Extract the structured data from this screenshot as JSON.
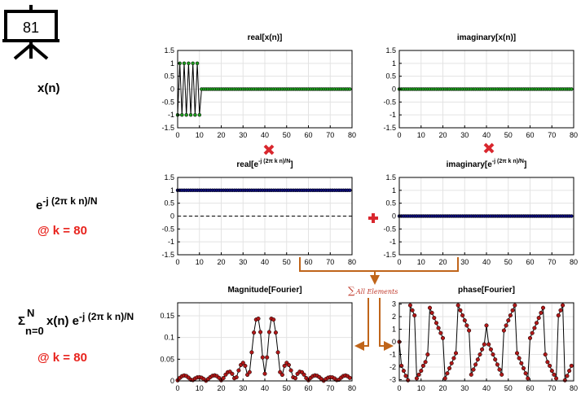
{
  "slide": {
    "number": "81"
  },
  "rows": {
    "row1": {
      "label": "x(n)"
    },
    "row2": {
      "label_base": "e",
      "label_exp": "-j (2π k n)/N",
      "k_text": "@ k = 80"
    },
    "row3": {
      "sigma": "Σ",
      "sigma_top": "N",
      "sigma_bottom": "n=0",
      "expr_mid": "x(n) e",
      "expr_exp": "-j (2π k n)/N",
      "k_text": "@ k = 80"
    }
  },
  "annotations": {
    "sum_label": "All Elements",
    "sum_symbol": "∑"
  },
  "colors": {
    "green": "#1c9a1c",
    "navy": "#0b0b7a",
    "maroon": "#b01818",
    "orange": "#c0651a",
    "red_mark": "#d9272e"
  },
  "chart_data": [
    {
      "id": "real_x",
      "type": "line",
      "title": "real[x(n)]",
      "xlim": [
        0,
        80
      ],
      "ylim": [
        -1.5,
        1.5
      ],
      "xticks": [
        0,
        10,
        20,
        30,
        40,
        50,
        60,
        70,
        80
      ],
      "yticks": [
        -1.5,
        -1,
        -0.5,
        0,
        0.5,
        1,
        1.5
      ],
      "series": [
        {
          "x_start": 0,
          "x_step": 1,
          "values": [
            -1,
            1,
            -1,
            1,
            -1,
            1,
            -1,
            1,
            -1,
            1,
            -1,
            0,
            0,
            0,
            0,
            0,
            0,
            0,
            0,
            0,
            0,
            0,
            0,
            0,
            0,
            0,
            0,
            0,
            0,
            0,
            0,
            0,
            0,
            0,
            0,
            0,
            0,
            0,
            0,
            0,
            0,
            0,
            0,
            0,
            0,
            0,
            0,
            0,
            0,
            0,
            0,
            0,
            0,
            0,
            0,
            0,
            0,
            0,
            0,
            0,
            0,
            0,
            0,
            0,
            0,
            0,
            0,
            0,
            0,
            0,
            0,
            0,
            0,
            0,
            0,
            0,
            0,
            0,
            0,
            0
          ]
        }
      ],
      "grid": true
    },
    {
      "id": "imag_x",
      "type": "line",
      "title": "imaginary[x(n)]",
      "xlim": [
        0,
        80
      ],
      "ylim": [
        -1.5,
        1.5
      ],
      "xticks": [
        0,
        10,
        20,
        30,
        40,
        50,
        60,
        70,
        80
      ],
      "yticks": [
        -1.5,
        -1,
        -0.5,
        0,
        0.5,
        1,
        1.5
      ],
      "series": [
        {
          "x_start": 0,
          "x_step": 1,
          "values": [
            0,
            0,
            0,
            0,
            0,
            0,
            0,
            0,
            0,
            0,
            0,
            0,
            0,
            0,
            0,
            0,
            0,
            0,
            0,
            0,
            0,
            0,
            0,
            0,
            0,
            0,
            0,
            0,
            0,
            0,
            0,
            0,
            0,
            0,
            0,
            0,
            0,
            0,
            0,
            0,
            0,
            0,
            0,
            0,
            0,
            0,
            0,
            0,
            0,
            0,
            0,
            0,
            0,
            0,
            0,
            0,
            0,
            0,
            0,
            0,
            0,
            0,
            0,
            0,
            0,
            0,
            0,
            0,
            0,
            0,
            0,
            0,
            0,
            0,
            0,
            0,
            0,
            0,
            0,
            0
          ]
        }
      ],
      "grid": true
    },
    {
      "id": "real_e",
      "type": "line",
      "title_base": "real[e",
      "title_exp": "-j (2π k n)/N",
      "title_end": "]",
      "xlim": [
        0,
        80
      ],
      "ylim": [
        -1.5,
        1.5
      ],
      "xticks": [
        0,
        10,
        20,
        30,
        40,
        50,
        60,
        70,
        80
      ],
      "yticks": [
        -1.5,
        -1,
        -0.5,
        0,
        0.5,
        1,
        1.5
      ],
      "series": [
        {
          "x_start": 0,
          "x_step": 1,
          "values": [
            1,
            1,
            1,
            1,
            1,
            1,
            1,
            1,
            1,
            1,
            1,
            1,
            1,
            1,
            1,
            1,
            1,
            1,
            1,
            1,
            1,
            1,
            1,
            1,
            1,
            1,
            1,
            1,
            1,
            1,
            1,
            1,
            1,
            1,
            1,
            1,
            1,
            1,
            1,
            1,
            1,
            1,
            1,
            1,
            1,
            1,
            1,
            1,
            1,
            1,
            1,
            1,
            1,
            1,
            1,
            1,
            1,
            1,
            1,
            1,
            1,
            1,
            1,
            1,
            1,
            1,
            1,
            1,
            1,
            1,
            1,
            1,
            1,
            1,
            1,
            1,
            1,
            1,
            1,
            1
          ]
        }
      ],
      "grid": true
    },
    {
      "id": "imag_e",
      "type": "line",
      "title_base": "imaginary[e",
      "title_exp": "-j (2π k n)/N",
      "title_end": "]",
      "xlim": [
        0,
        80
      ],
      "ylim": [
        -1.5,
        1.5
      ],
      "xticks": [
        0,
        10,
        20,
        30,
        40,
        50,
        60,
        70,
        80
      ],
      "yticks": [
        -1.5,
        -1,
        -0.5,
        0,
        0.5,
        1,
        1.5
      ],
      "series": [
        {
          "x_start": 0,
          "x_step": 1,
          "values": [
            0,
            0,
            0,
            0,
            0,
            0,
            0,
            0,
            0,
            0,
            0,
            0,
            0,
            0,
            0,
            0,
            0,
            0,
            0,
            0,
            0,
            0,
            0,
            0,
            0,
            0,
            0,
            0,
            0,
            0,
            0,
            0,
            0,
            0,
            0,
            0,
            0,
            0,
            0,
            0,
            0,
            0,
            0,
            0,
            0,
            0,
            0,
            0,
            0,
            0,
            0,
            0,
            0,
            0,
            0,
            0,
            0,
            0,
            0,
            0,
            0,
            0,
            0,
            0,
            0,
            0,
            0,
            0,
            0,
            0,
            0,
            0,
            0,
            0,
            0,
            0,
            0,
            0,
            0,
            0
          ]
        }
      ],
      "grid": true
    },
    {
      "id": "magnitude",
      "type": "line",
      "title": "Magnitude[Fourier]",
      "xlim": [
        0,
        80
      ],
      "ylim": [
        0,
        0.18
      ],
      "xticks": [
        0,
        10,
        20,
        30,
        40,
        50,
        60,
        70,
        80
      ],
      "yticks": [
        0,
        0.05,
        0.1,
        0.15
      ],
      "series": [
        {
          "x_start": 0,
          "x_step": 1,
          "values": [
            0.0014,
            0.0069,
            0.0109,
            0.0125,
            0.0112,
            0.0075,
            0.0028,
            0.0019,
            0.0057,
            0.0081,
            0.0087,
            0.0073,
            0.0043,
            0.0004,
            0.0043,
            0.0087,
            0.0118,
            0.0127,
            0.0111,
            0.007,
            0.0015,
            0.0066,
            0.0145,
            0.0201,
            0.0211,
            0.0164,
            0.0061,
            0.0084,
            0.0242,
            0.0368,
            0.0416,
            0.0346,
            0.014,
            0.0203,
            0.0659,
            0.1113,
            0.1412,
            0.1435,
            0.1125,
            0.0542,
            0.0165,
            0.0542,
            0.1125,
            0.1435,
            0.1412,
            0.1113,
            0.0659,
            0.0203,
            0.014,
            0.0346,
            0.0416,
            0.0368,
            0.0242,
            0.0084,
            0.0061,
            0.0164,
            0.0211,
            0.0201,
            0.0145,
            0.0066,
            0.0015,
            0.007,
            0.0111,
            0.0127,
            0.0118,
            0.0087,
            0.0043,
            0.0004,
            0.0043,
            0.0073,
            0.0087,
            0.0081,
            0.0057,
            0.0019,
            0.0028,
            0.0075,
            0.0112,
            0.0125,
            0.0109,
            0.0069
          ]
        }
      ],
      "grid": true
    },
    {
      "id": "phase",
      "type": "line",
      "title": "phase[Fourier]",
      "xlim": [
        0,
        80
      ],
      "ylim": [
        -3.1,
        3.1
      ],
      "xticks": [
        0,
        10,
        20,
        30,
        40,
        50,
        60,
        70,
        80
      ],
      "yticks": [
        -3,
        -2,
        -1,
        0,
        1,
        2,
        3
      ],
      "series": [
        {
          "x_start": 0,
          "x_step": 1,
          "values": [
            0,
            -1.9,
            -2.3,
            -2.7,
            -3.05,
            2.9,
            2.5,
            2.1,
            -2.9,
            -2.6,
            -2.3,
            -1.9,
            -1.6,
            -1.0,
            2.7,
            2.3,
            1.9,
            1.5,
            1.1,
            0.7,
            0.3,
            -2.9,
            -2.5,
            -2.1,
            -1.7,
            -1.3,
            -0.9,
            2.9,
            2.5,
            2.1,
            1.7,
            1.3,
            0.9,
            -2.6,
            -2.2,
            -1.8,
            -1.4,
            -1.0,
            -0.6,
            -0.2,
            1.3,
            -0.2,
            -0.6,
            -1.0,
            -1.4,
            -1.8,
            -2.2,
            -2.6,
            0.9,
            1.3,
            1.7,
            2.1,
            2.5,
            2.9,
            -0.9,
            -1.3,
            -1.7,
            -2.1,
            -2.5,
            -2.9,
            0.3,
            0.7,
            1.1,
            1.5,
            1.9,
            2.3,
            2.7,
            -1.0,
            -1.6,
            -1.9,
            -2.3,
            -2.6,
            -2.9,
            2.1,
            2.5,
            2.9,
            -3.05,
            -2.7,
            -2.3,
            -1.9
          ]
        }
      ],
      "grid": true
    }
  ]
}
